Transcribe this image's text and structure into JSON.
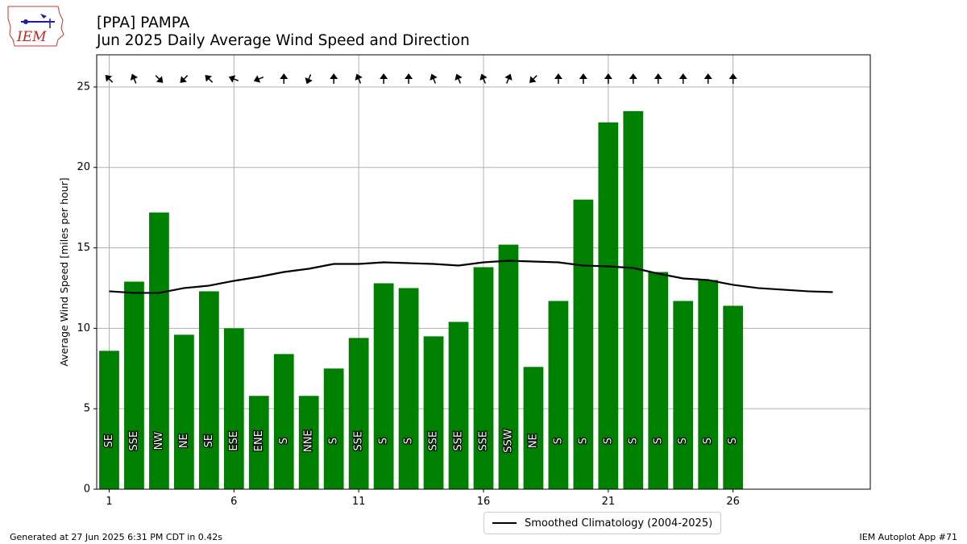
{
  "header": {
    "title_line1": "[PPA] PAMPA",
    "title_line2": "Jun 2025 Daily Average Wind Speed and Direction"
  },
  "logo": {
    "text": "IEM"
  },
  "footer": {
    "left": "Generated at 27 Jun 2025 6:31 PM CDT in 0.42s",
    "right": "IEM Autoplot App #71"
  },
  "legend": {
    "label": "Smoothed Climatology (2004-2025)",
    "placement": "lower-center-outside"
  },
  "colors": {
    "bar": "#008000",
    "climo_line": "#000000",
    "grid": "#b0b0b0"
  },
  "chart_data": {
    "type": "bar",
    "ylabel": "Average Wind Speed [miles per hour]",
    "xlabel": "",
    "xlim": [
      0.5,
      31.5
    ],
    "ylim": [
      0,
      27
    ],
    "xticks": [
      1,
      6,
      11,
      16,
      21,
      26
    ],
    "yticks": [
      0,
      5,
      10,
      15,
      20,
      25
    ],
    "grid": true,
    "days": [
      1,
      2,
      3,
      4,
      5,
      6,
      7,
      8,
      9,
      10,
      11,
      12,
      13,
      14,
      15,
      16,
      17,
      18,
      19,
      20,
      21,
      22,
      23,
      24,
      25,
      26
    ],
    "values": [
      8.6,
      12.9,
      17.2,
      9.6,
      12.3,
      10.0,
      5.8,
      8.4,
      5.8,
      7.5,
      9.4,
      12.8,
      12.5,
      9.5,
      10.4,
      13.8,
      15.2,
      7.6,
      11.7,
      18.0,
      22.8,
      23.5,
      13.5,
      11.7,
      13.0,
      11.4
    ],
    "directions": [
      "SE",
      "SSE",
      "NW",
      "NE",
      "SE",
      "ESE",
      "ENE",
      "S",
      "NNE",
      "S",
      "SSE",
      "S",
      "S",
      "SSE",
      "SSE",
      "SSE",
      "SSW",
      "NE",
      "S",
      "S",
      "S",
      "S",
      "S",
      "S",
      "S",
      "S"
    ],
    "climatology": {
      "name": "Smoothed Climatology (2004-2025)",
      "x": [
        1,
        2,
        3,
        4,
        5,
        6,
        7,
        8,
        9,
        10,
        11,
        12,
        13,
        14,
        15,
        16,
        17,
        18,
        19,
        20,
        21,
        22,
        23,
        24,
        25,
        26,
        27,
        28,
        29,
        30
      ],
      "y": [
        12.3,
        12.2,
        12.2,
        12.5,
        12.65,
        12.95,
        13.2,
        13.5,
        13.7,
        14.0,
        14.0,
        14.1,
        14.05,
        14.0,
        13.9,
        14.1,
        14.2,
        14.15,
        14.1,
        13.9,
        13.85,
        13.75,
        13.4,
        13.1,
        13.0,
        12.7,
        12.5,
        12.4,
        12.3,
        12.25
      ]
    }
  }
}
